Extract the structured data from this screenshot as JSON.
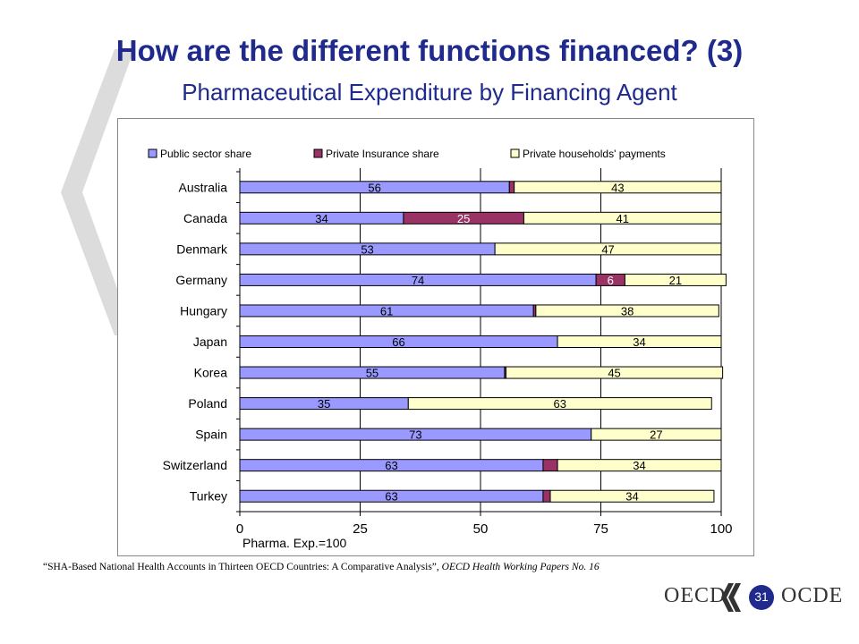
{
  "slide": {
    "title": "How are the different functions financed? (3)",
    "subtitle": "Pharmaceutical Expenditure by Financing Agent",
    "source_quote": "“SHA-Based National Health Accounts in Thirteen OECD Countries: A Comparative Analysis”,",
    "source_pub": "OECD Health Working Papers No. 16",
    "logo_left": "OECD",
    "logo_right": "OCDE",
    "page_number": "31"
  },
  "colors": {
    "title": "#1f2a8c",
    "public": "#9999ff",
    "insurance": "#993366",
    "households": "#ffffcc"
  },
  "chart_data": {
    "type": "bar",
    "orientation": "horizontal",
    "stacked": true,
    "categories": [
      "Australia",
      "Canada",
      "Denmark",
      "Germany",
      "Hungary",
      "Japan",
      "Korea",
      "Poland",
      "Spain",
      "Switzerland",
      "Turkey"
    ],
    "series": [
      {
        "name": "Public sector share",
        "color": "#9999ff",
        "values": [
          56,
          34,
          53,
          74,
          61,
          66,
          55,
          35,
          73,
          63,
          63
        ],
        "labels": [
          "56",
          "34",
          "53",
          "74",
          "61",
          "66",
          "55",
          "35",
          "73",
          "63",
          "63"
        ]
      },
      {
        "name": "Private Insurance share",
        "color": "#993366",
        "values": [
          1,
          25,
          0,
          6,
          0.5,
          0,
          0.3,
          0,
          0,
          3,
          1.5
        ],
        "labels": [
          "",
          "25",
          "",
          "6",
          "",
          "",
          "",
          "",
          "",
          "",
          ""
        ]
      },
      {
        "name": "Private households' payments",
        "color": "#ffffcc",
        "values": [
          43,
          41,
          47,
          21,
          38,
          34,
          45,
          63,
          27,
          34,
          34
        ],
        "labels": [
          "43",
          "41",
          "47",
          "21",
          "38",
          "34",
          "45",
          "63",
          "27",
          "34",
          "34"
        ]
      }
    ],
    "xlim": [
      0,
      100
    ],
    "xticks": [
      0,
      25,
      50,
      75,
      100
    ],
    "xtick_labels": [
      "0",
      "25",
      "50",
      "75",
      "100"
    ],
    "xlabel": "Pharma. Exp.=100",
    "grid": true,
    "legend_position": "top"
  }
}
